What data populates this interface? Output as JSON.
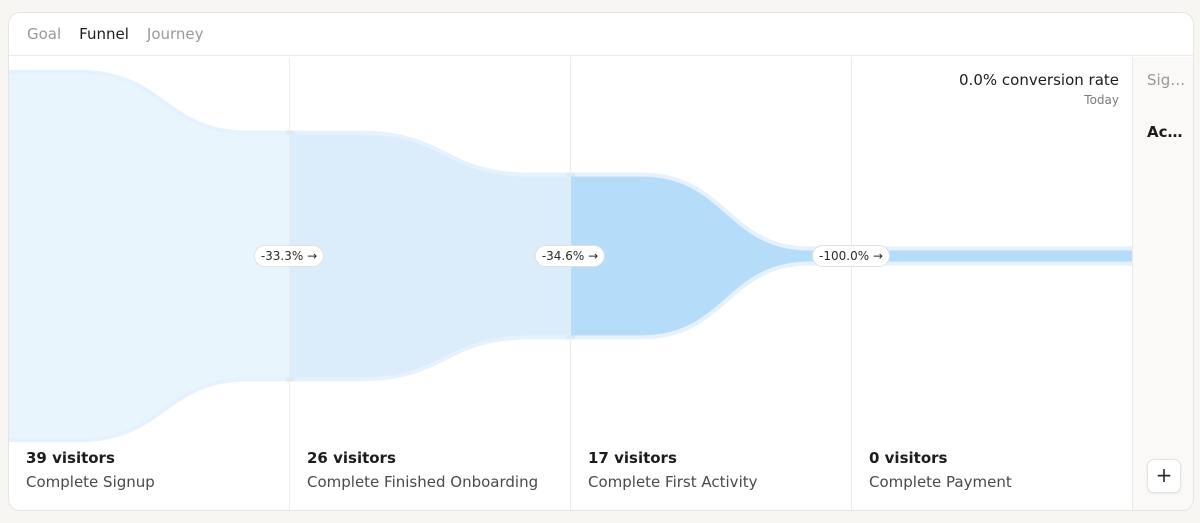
{
  "tabs": [
    {
      "label": "Goal",
      "active": false
    },
    {
      "label": "Funnel",
      "active": true
    },
    {
      "label": "Journey",
      "active": false
    }
  ],
  "conversion": {
    "rate": "0.0% conversion rate",
    "period": "Today"
  },
  "side_panel": {
    "items": [
      "Sig…",
      "Ac…"
    ],
    "add_label": "+"
  },
  "colors": {
    "step1": "#e9f5fd",
    "step2": "#dbecfb",
    "step3": "#b5dcf8",
    "step4": "#b5dcf8",
    "halo": "#cfe6f9"
  },
  "chart_data": {
    "type": "funnel",
    "steps": [
      {
        "name": "Complete Signup",
        "visitors": 39,
        "count_label": "39 visitors"
      },
      {
        "name": "Complete Finished Onboarding",
        "visitors": 26,
        "count_label": "26 visitors"
      },
      {
        "name": "Complete First Activity",
        "visitors": 17,
        "count_label": "17 visitors"
      },
      {
        "name": "Complete Payment",
        "visitors": 0,
        "count_label": "0 visitors"
      }
    ],
    "dropoffs": [
      "-33.3% →",
      "-34.6% →",
      "-100.0% →"
    ]
  }
}
